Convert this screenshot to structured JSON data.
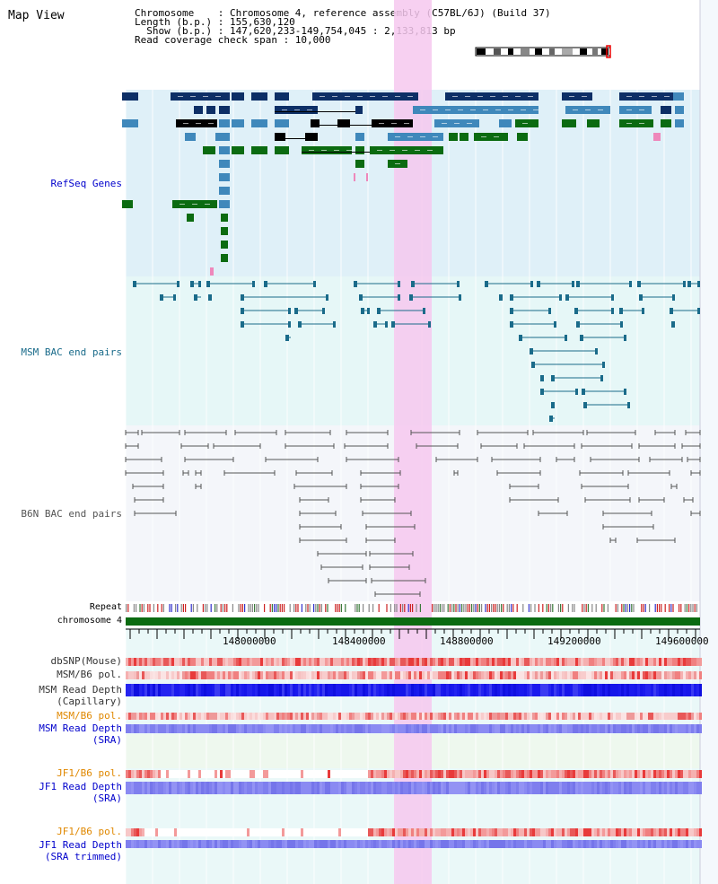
{
  "title": "Map View",
  "info": {
    "chromosome": "Chromosome    : Chromosome 4, reference assembly (C57BL/6J) (Build 37)",
    "length": "Length (b.p.) : 155,630,120",
    "show": "  Show (b.p.) : 147,620,233-149,754,045 : 2,133,813 bp",
    "coverage": "Read coverage check span : 10,000"
  },
  "tracks": {
    "refseq": "RefSeq Genes",
    "msm_bac": "MSM BAC end pairs",
    "b6n_bac": "B6N BAC end pairs",
    "repeat": "Repeat",
    "chromosome": "chromosome 4"
  },
  "axis": {
    "ticks": [
      "148000000",
      "148400000",
      "148800000",
      "149200000",
      "149600000"
    ]
  },
  "lower_tracks": {
    "dbsnp": "dbSNP(Mouse)",
    "msm_b6_pol": "MSM/B6 pol.",
    "msm_depth_cap_1": "MSM Read Depth",
    "msm_depth_cap_2": "(Capillary)",
    "msm_b6_pol_sra": "MSM/B6 pol.",
    "msm_depth_sra_1": "MSM Read Depth",
    "msm_depth_sra_2": "(SRA)",
    "jf1_b6_pol": "JF1/B6 pol.",
    "jf1_depth_1": "JF1 Read Depth",
    "jf1_depth_2": "(SRA)",
    "jf1_b6_pol_tr": "JF1/B6 pol.",
    "jf1_depth_tr_1": "JF1 Read Depth",
    "jf1_depth_tr_2": "(SRA trimmed)"
  },
  "colors": {
    "refseq_bg": "#dff0f8",
    "msm_bg": "#e6f7f7",
    "b6n_bg": "#f2f4f8",
    "highlight": "#f6c8ee",
    "gene_dark": "#0d2f66",
    "gene_mid": "#3f88bb",
    "gene_green": "#0b6b11",
    "msm_line": "#1a6b8a",
    "b6n_line": "#555555",
    "label_blue": "#0000cc",
    "label_orange": "#e08800",
    "label_teal": "#1a6b8a"
  }
}
